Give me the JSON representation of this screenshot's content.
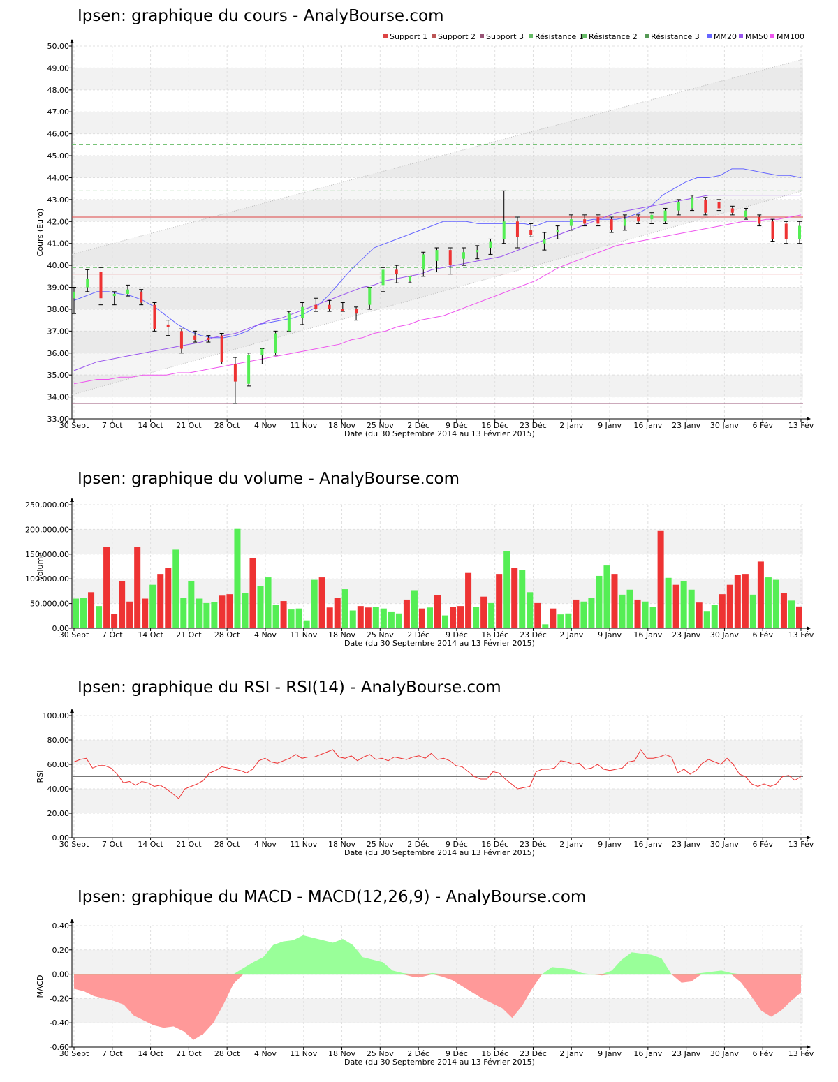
{
  "x_axis": {
    "labels": [
      "30 Sept",
      "7 Oct",
      "14 Oct",
      "21 Oct",
      "28 Oct",
      "4 Nov",
      "11 Nov",
      "18 Nov",
      "25 Nov",
      "2 Déc",
      "9 Déc",
      "16 Déc",
      "23 Déc",
      "2 Janv",
      "9 Janv",
      "16 Janv",
      "23 Janv",
      "30 Janv",
      "6 Fév",
      "13 Fév"
    ],
    "caption": "Date (du 30 Septembre 2014 au 13 Février 2015)"
  },
  "colors": {
    "up": "#55ee55",
    "down": "#ee3333",
    "mm20": "#6666ff",
    "mm50": "#9955ee",
    "mm100": "#ee55ee",
    "support": "#dd4444",
    "resistance": "#66bb66",
    "rsi": "#ee3333",
    "macd_pos": "#99ff99",
    "macd_neg": "#ff9999"
  },
  "chart_data": [
    {
      "type": "candlestick",
      "title": "Ipsen: graphique du cours - AnalyBourse.com",
      "ylabel": "Cours (Euro)",
      "xlabel": "Date (du 30 Septembre 2014 au 13 Février 2015)",
      "ylim": [
        33,
        50
      ],
      "yticks": [
        "33.00",
        "34.00",
        "35.00",
        "36.00",
        "37.00",
        "38.00",
        "39.00",
        "40.00",
        "41.00",
        "42.00",
        "43.00",
        "44.00",
        "45.00",
        "46.00",
        "47.00",
        "48.00",
        "49.00",
        "50.00"
      ],
      "legend": [
        "Support 1",
        "Support 2",
        "Support 3",
        "Résistance 1",
        "Résistance 2",
        "Résistance 3",
        "MM20",
        "MM50",
        "MM100"
      ],
      "legend_position": "top-right",
      "levels": {
        "support1": 42.2,
        "support2": 39.6,
        "support3": 33.7,
        "resistance1": 45.5,
        "resistance2": 43.4,
        "resistance3": 39.9
      },
      "series": [
        {
          "name": "MM20",
          "values": [
            38.4,
            38.6,
            38.8,
            38.8,
            38.7,
            38.6,
            38.4,
            38.1,
            37.7,
            37.3,
            37.0,
            36.8,
            36.7,
            36.7,
            36.8,
            37.0,
            37.3,
            37.4,
            37.5,
            37.6,
            37.8,
            38.1,
            38.6,
            39.2,
            39.8,
            40.3,
            40.8,
            41.0,
            41.2,
            41.4,
            41.6,
            41.8,
            42.0,
            42.0,
            42.0,
            41.9,
            41.9,
            41.9,
            41.9,
            41.9,
            41.8,
            42.0,
            42.0,
            42.0,
            42.0,
            42.1,
            42.1,
            42.1,
            42.2,
            42.4,
            42.7,
            43.2,
            43.5,
            43.8,
            44.0,
            44.0,
            44.1,
            44.4,
            44.4,
            44.3,
            44.2,
            44.1,
            44.1,
            44.0
          ]
        },
        {
          "name": "MM50",
          "values": [
            35.2,
            35.4,
            35.6,
            35.7,
            35.8,
            35.9,
            36.0,
            36.1,
            36.2,
            36.3,
            36.4,
            36.5,
            36.7,
            36.8,
            36.9,
            37.1,
            37.3,
            37.5,
            37.6,
            37.8,
            38.0,
            38.2,
            38.4,
            38.6,
            38.8,
            39.0,
            39.1,
            39.3,
            39.4,
            39.5,
            39.6,
            39.8,
            39.9,
            40.0,
            40.1,
            40.2,
            40.3,
            40.4,
            40.6,
            40.8,
            41.0,
            41.2,
            41.4,
            41.6,
            41.8,
            42.0,
            42.2,
            42.4,
            42.5,
            42.6,
            42.7,
            42.8,
            42.9,
            43.0,
            43.1,
            43.2,
            43.2,
            43.2,
            43.2,
            43.2,
            43.2,
            43.2,
            43.2,
            43.2
          ]
        },
        {
          "name": "MM100",
          "values": [
            34.6,
            34.7,
            34.8,
            34.8,
            34.9,
            34.9,
            35.0,
            35.0,
            35.0,
            35.1,
            35.1,
            35.2,
            35.3,
            35.4,
            35.5,
            35.6,
            35.7,
            35.8,
            35.9,
            36.0,
            36.1,
            36.2,
            36.3,
            36.4,
            36.6,
            36.7,
            36.9,
            37.0,
            37.2,
            37.3,
            37.5,
            37.6,
            37.7,
            37.9,
            38.1,
            38.3,
            38.5,
            38.7,
            38.9,
            39.1,
            39.3,
            39.6,
            39.9,
            40.1,
            40.3,
            40.5,
            40.7,
            40.9,
            41.0,
            41.1,
            41.2,
            41.3,
            41.4,
            41.5,
            41.6,
            41.7,
            41.8,
            41.9,
            42.0,
            42.0,
            42.1,
            42.1,
            42.2,
            42.3
          ]
        }
      ],
      "ohlc": [
        {
          "o": 38.5,
          "h": 39.0,
          "l": 37.8,
          "c": 38.8
        },
        {
          "o": 39.0,
          "h": 39.8,
          "l": 38.8,
          "c": 39.4
        },
        {
          "o": 39.7,
          "h": 39.9,
          "l": 38.2,
          "c": 38.5
        },
        {
          "o": 38.6,
          "h": 38.8,
          "l": 38.2,
          "c": 38.7
        },
        {
          "o": 38.7,
          "h": 39.1,
          "l": 38.6,
          "c": 38.9
        },
        {
          "o": 38.8,
          "h": 38.9,
          "l": 38.2,
          "c": 38.3
        },
        {
          "o": 38.2,
          "h": 38.3,
          "l": 37.0,
          "c": 37.1
        },
        {
          "o": 37.3,
          "h": 37.5,
          "l": 36.8,
          "c": 37.2
        },
        {
          "o": 37.0,
          "h": 37.1,
          "l": 36.0,
          "c": 36.2
        },
        {
          "o": 36.8,
          "h": 37.0,
          "l": 36.5,
          "c": 36.6
        },
        {
          "o": 36.7,
          "h": 36.8,
          "l": 36.5,
          "c": 36.6
        },
        {
          "o": 36.8,
          "h": 36.9,
          "l": 35.5,
          "c": 35.6
        },
        {
          "o": 35.5,
          "h": 35.8,
          "l": 33.7,
          "c": 34.7
        },
        {
          "o": 34.6,
          "h": 36.0,
          "l": 34.5,
          "c": 35.9
        },
        {
          "o": 35.9,
          "h": 36.2,
          "l": 35.5,
          "c": 36.2
        },
        {
          "o": 36.0,
          "h": 37.0,
          "l": 35.9,
          "c": 36.9
        },
        {
          "o": 37.0,
          "h": 37.9,
          "l": 37.0,
          "c": 37.8
        },
        {
          "o": 37.6,
          "h": 38.3,
          "l": 37.3,
          "c": 38.1
        },
        {
          "o": 38.2,
          "h": 38.5,
          "l": 37.9,
          "c": 38.0
        },
        {
          "o": 38.2,
          "h": 38.4,
          "l": 37.9,
          "c": 38.0
        },
        {
          "o": 38.0,
          "h": 38.3,
          "l": 37.9,
          "c": 37.9
        },
        {
          "o": 38.0,
          "h": 38.1,
          "l": 37.5,
          "c": 37.8
        },
        {
          "o": 38.2,
          "h": 39.0,
          "l": 38.0,
          "c": 39.0
        },
        {
          "o": 39.1,
          "h": 39.9,
          "l": 38.8,
          "c": 39.8
        },
        {
          "o": 39.8,
          "h": 40.0,
          "l": 39.2,
          "c": 39.6
        },
        {
          "o": 39.3,
          "h": 39.5,
          "l": 39.2,
          "c": 39.5
        },
        {
          "o": 39.8,
          "h": 40.6,
          "l": 39.5,
          "c": 40.5
        },
        {
          "o": 40.2,
          "h": 40.8,
          "l": 39.7,
          "c": 40.7
        },
        {
          "o": 40.7,
          "h": 40.8,
          "l": 39.6,
          "c": 40.0
        },
        {
          "o": 40.3,
          "h": 40.8,
          "l": 40.0,
          "c": 40.6
        },
        {
          "o": 40.6,
          "h": 40.9,
          "l": 40.3,
          "c": 40.7
        },
        {
          "o": 40.8,
          "h": 41.2,
          "l": 40.5,
          "c": 41.1
        },
        {
          "o": 41.2,
          "h": 43.4,
          "l": 41.0,
          "c": 42.0
        },
        {
          "o": 42.0,
          "h": 42.2,
          "l": 40.8,
          "c": 41.3
        },
        {
          "o": 41.6,
          "h": 41.9,
          "l": 41.3,
          "c": 41.4
        },
        {
          "o": 41.0,
          "h": 41.5,
          "l": 40.7,
          "c": 41.2
        },
        {
          "o": 41.5,
          "h": 41.8,
          "l": 41.2,
          "c": 41.6
        },
        {
          "o": 41.8,
          "h": 42.3,
          "l": 41.6,
          "c": 42.1
        },
        {
          "o": 42.1,
          "h": 42.3,
          "l": 41.8,
          "c": 41.9
        },
        {
          "o": 42.2,
          "h": 42.3,
          "l": 41.8,
          "c": 41.9
        },
        {
          "o": 42.1,
          "h": 42.2,
          "l": 41.5,
          "c": 41.6
        },
        {
          "o": 41.8,
          "h": 42.3,
          "l": 41.6,
          "c": 42.1
        },
        {
          "o": 42.2,
          "h": 42.3,
          "l": 41.9,
          "c": 42.0
        },
        {
          "o": 42.1,
          "h": 42.4,
          "l": 41.9,
          "c": 42.3
        },
        {
          "o": 42.0,
          "h": 42.6,
          "l": 41.9,
          "c": 42.5
        },
        {
          "o": 42.5,
          "h": 43.0,
          "l": 42.3,
          "c": 42.9
        },
        {
          "o": 42.6,
          "h": 43.2,
          "l": 42.5,
          "c": 43.1
        },
        {
          "o": 43.0,
          "h": 43.1,
          "l": 42.3,
          "c": 42.4
        },
        {
          "o": 42.9,
          "h": 43.0,
          "l": 42.5,
          "c": 42.6
        },
        {
          "o": 42.6,
          "h": 42.7,
          "l": 42.3,
          "c": 42.4
        },
        {
          "o": 42.2,
          "h": 42.6,
          "l": 42.1,
          "c": 42.5
        },
        {
          "o": 42.2,
          "h": 42.3,
          "l": 41.8,
          "c": 41.9
        },
        {
          "o": 42.0,
          "h": 42.1,
          "l": 41.1,
          "c": 41.2
        },
        {
          "o": 41.9,
          "h": 42.0,
          "l": 41.0,
          "c": 41.2
        },
        {
          "o": 41.2,
          "h": 42.0,
          "l": 41.0,
          "c": 41.8
        }
      ]
    },
    {
      "type": "bar",
      "title": "Ipsen: graphique du volume - AnalyBourse.com",
      "ylabel": "Volume",
      "xlabel": "Date (du 30 Septembre 2014 au 13 Février 2015)",
      "ylim": [
        0,
        250000
      ],
      "yticks": [
        "0.00",
        "50,000.00",
        "100,000.00",
        "150,000.00",
        "200,000.00",
        "250,000.00"
      ],
      "values": [
        60000,
        61000,
        73000,
        45000,
        164000,
        29000,
        96000,
        54000,
        164000,
        60000,
        88000,
        110000,
        122000,
        159000,
        61000,
        95000,
        60000,
        51000,
        53000,
        66000,
        69000,
        201000,
        72000,
        142000,
        86000,
        103000,
        47000,
        55000,
        38000,
        40000,
        16000,
        98000,
        103000,
        42000,
        62000,
        79000,
        36000,
        45000,
        42000,
        43000,
        40000,
        34000,
        30000,
        58000,
        77000,
        40000,
        42000,
        67000,
        26000,
        43000,
        45000,
        112000,
        43000,
        64000,
        51000,
        110000,
        156000,
        122000,
        118000,
        73000,
        51000,
        8000,
        40000,
        28000,
        30000,
        58000,
        54000,
        62000,
        106000,
        127000,
        110000,
        68000,
        78000,
        58000,
        54000,
        43000,
        198000,
        102000,
        88000,
        95000,
        78000,
        52000,
        35000,
        48000,
        69000,
        88000,
        108000,
        110000,
        68000,
        135000,
        103000,
        98000,
        71000,
        56000,
        44000
      ],
      "up": [
        1,
        1,
        0,
        1,
        0,
        0,
        0,
        0,
        0,
        0,
        1,
        0,
        0,
        1,
        1,
        1,
        1,
        1,
        1,
        0,
        0,
        1,
        1,
        0,
        1,
        1,
        1,
        0,
        1,
        1,
        1,
        1,
        0,
        0,
        0,
        1,
        1,
        0,
        0,
        1,
        1,
        1,
        1,
        0,
        1,
        0,
        1,
        0,
        1,
        0,
        0,
        0,
        1,
        0,
        1,
        0,
        1,
        0,
        1,
        1,
        0,
        1,
        0,
        1,
        1,
        0,
        1,
        1,
        1,
        1,
        0,
        1,
        1,
        0,
        1,
        1,
        0,
        1,
        0,
        1,
        1,
        0,
        1,
        1,
        0,
        0,
        0,
        0,
        1,
        0,
        1,
        1,
        0,
        1,
        0
      ]
    },
    {
      "type": "line",
      "title": "Ipsen: graphique du RSI - RSI(14) - AnalyBourse.com",
      "ylabel": "RSI",
      "xlabel": "Date (du 30 Septembre 2014 au 13 Février 2015)",
      "ylim": [
        0,
        100
      ],
      "yticks": [
        "0.00",
        "20.00",
        "40.00",
        "60.00",
        "80.00",
        "100.00"
      ],
      "reference": 50,
      "values": [
        62,
        64,
        65,
        57,
        59,
        59,
        57,
        52,
        45,
        46,
        43,
        46,
        45,
        42,
        43,
        40,
        36,
        32,
        40,
        42,
        44,
        47,
        53,
        55,
        58,
        57,
        56,
        55,
        53,
        56,
        63,
        65,
        62,
        61,
        63,
        65,
        68,
        65,
        66,
        66,
        68,
        70,
        72,
        66,
        65,
        67,
        63,
        66,
        68,
        64,
        65,
        63,
        66,
        65,
        64,
        66,
        67,
        65,
        69,
        64,
        65,
        63,
        59,
        58,
        54,
        50,
        48,
        48,
        54,
        53,
        48,
        44,
        40,
        41,
        42,
        54,
        56,
        56,
        57,
        63,
        62,
        60,
        61,
        56,
        57,
        60,
        56,
        55,
        56,
        57,
        62,
        63,
        72,
        65,
        65,
        66,
        68,
        66,
        53,
        56,
        52,
        55,
        61,
        64,
        62,
        60,
        65,
        60,
        52,
        50,
        44,
        42,
        44,
        42,
        44,
        50,
        51,
        47,
        50
      ],
      "color": "#ee3333"
    },
    {
      "type": "area",
      "title": "Ipsen: graphique du MACD - MACD(12,26,9) - AnalyBourse.com",
      "ylabel": "MACD",
      "xlabel": "Date (du 30 Septembre 2014 au 13 Février 2015)",
      "ylim": [
        -0.6,
        0.4
      ],
      "yticks": [
        "-0.60",
        "-0.40",
        "-0.20",
        "0.00",
        "0.20",
        "0.40"
      ],
      "values": [
        -0.12,
        -0.14,
        -0.18,
        -0.2,
        -0.22,
        -0.25,
        -0.34,
        -0.38,
        -0.42,
        -0.44,
        -0.43,
        -0.47,
        -0.54,
        -0.49,
        -0.4,
        -0.25,
        -0.08,
        0.05,
        0.1,
        0.14,
        0.24,
        0.27,
        0.28,
        0.32,
        0.3,
        0.28,
        0.26,
        0.29,
        0.24,
        0.14,
        0.12,
        0.1,
        0.03,
        0.01,
        -0.02,
        -0.02,
        0.01,
        -0.02,
        -0.05,
        -0.1,
        -0.15,
        -0.2,
        -0.24,
        -0.28,
        -0.36,
        -0.26,
        -0.12,
        0.0,
        0.06,
        0.05,
        0.04,
        0.01,
        0.0,
        -0.01,
        0.03,
        0.12,
        0.18,
        0.17,
        0.16,
        0.13,
        0.0,
        -0.07,
        -0.06,
        0.01,
        0.02,
        0.03,
        0.01,
        -0.07,
        -0.18,
        -0.3,
        -0.35,
        -0.3,
        -0.22,
        -0.15
      ]
    }
  ]
}
